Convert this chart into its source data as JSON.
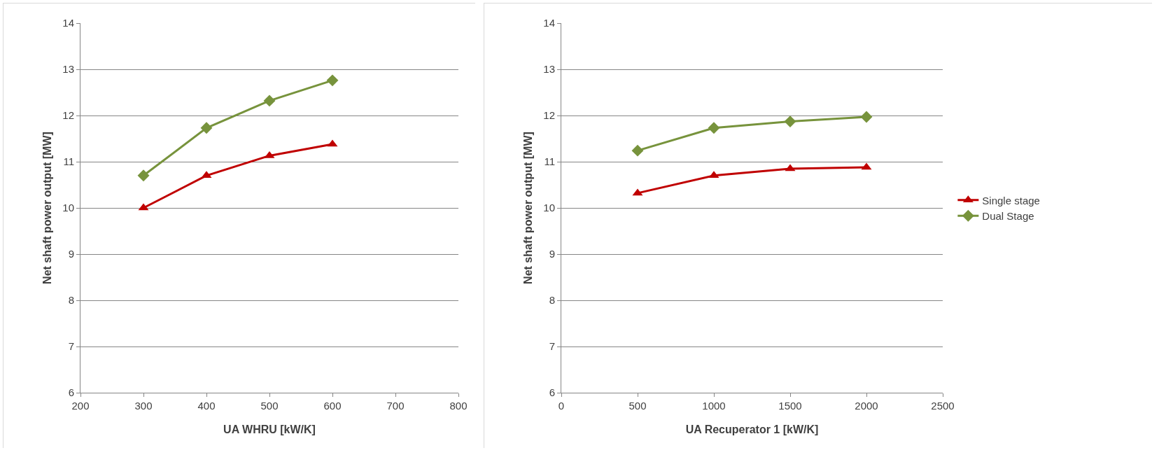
{
  "chart_data": [
    {
      "type": "line",
      "xlabel": "UA WHRU [kW/K]",
      "ylabel": "Net shaft power output [MW]",
      "xlim": [
        200,
        800
      ],
      "xticks": [
        200,
        300,
        400,
        500,
        600,
        700,
        800
      ],
      "ylim": [
        6,
        14
      ],
      "yticks": [
        6,
        7,
        8,
        9,
        10,
        11,
        12,
        13,
        14
      ],
      "grid": "y",
      "legend": false,
      "line_style": "solid",
      "series": [
        {
          "color": "#c00000",
          "marker": "triangle",
          "x": [
            300,
            400,
            500,
            600
          ],
          "values": [
            10.0,
            10.7,
            11.13,
            11.38
          ]
        },
        {
          "color": "#77933c",
          "marker": "diamond",
          "x": [
            300,
            400,
            500,
            600
          ],
          "values": [
            10.7,
            11.73,
            12.32,
            12.76
          ]
        }
      ]
    },
    {
      "type": "line",
      "xlabel": "UA Recuperator 1 [kW/K]",
      "ylabel": "Net shaft power output [MW]",
      "xlim": [
        0,
        2500
      ],
      "xticks": [
        0,
        500,
        1000,
        1500,
        2000,
        2500
      ],
      "ylim": [
        6,
        14
      ],
      "yticks": [
        6,
        7,
        8,
        9,
        10,
        11,
        12,
        13,
        14
      ],
      "grid": "y",
      "legend": "right",
      "line_style": "solid",
      "series": [
        {
          "name": "Single stage",
          "color": "#c00000",
          "marker": "triangle",
          "x": [
            500,
            1000,
            1500,
            2000
          ],
          "values": [
            10.32,
            10.7,
            10.85,
            10.88
          ]
        },
        {
          "name": "Dual Stage",
          "color": "#77933c",
          "marker": "diamond",
          "x": [
            500,
            1000,
            1500,
            2000
          ],
          "values": [
            11.24,
            11.73,
            11.87,
            11.97
          ]
        }
      ]
    }
  ]
}
